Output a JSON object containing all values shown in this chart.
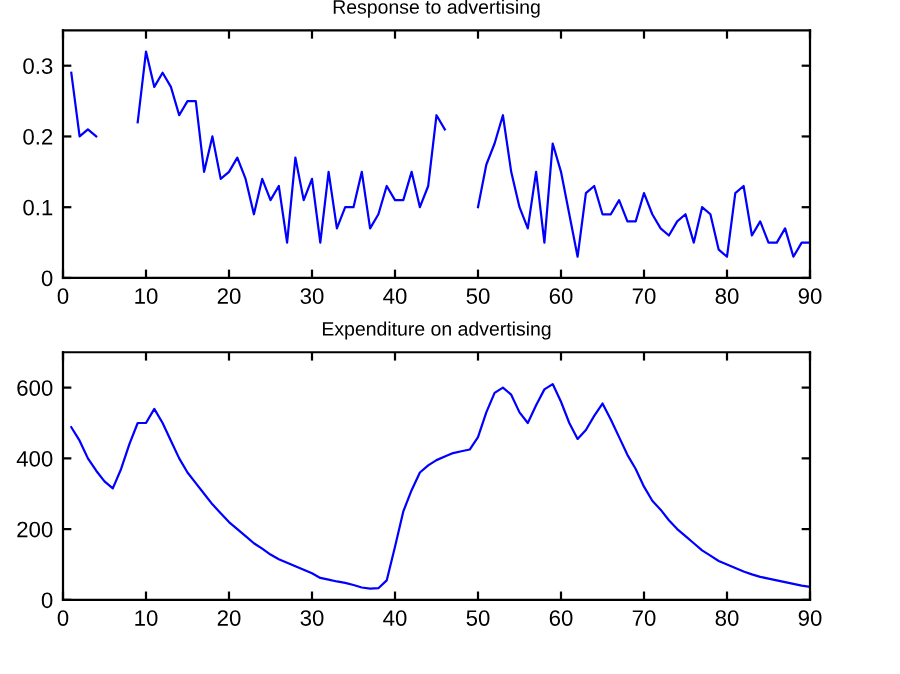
{
  "chart_data": [
    {
      "type": "line",
      "title": "Response to advertising",
      "x": [
        1,
        2,
        3,
        4,
        5,
        6,
        7,
        8,
        9,
        10,
        11,
        12,
        13,
        14,
        15,
        16,
        17,
        18,
        19,
        20,
        21,
        22,
        23,
        24,
        25,
        26,
        27,
        28,
        29,
        30,
        31,
        32,
        33,
        34,
        35,
        36,
        37,
        38,
        39,
        40,
        41,
        42,
        43,
        44,
        45,
        46,
        47,
        48,
        49,
        50,
        51,
        52,
        53,
        54,
        55,
        56,
        57,
        58,
        59,
        60,
        61,
        62,
        63,
        64,
        65,
        66,
        67,
        68,
        69,
        70,
        71,
        72,
        73,
        74,
        75,
        76,
        77,
        78,
        79,
        80,
        81,
        82,
        83,
        84,
        85,
        86,
        87,
        88,
        89,
        90
      ],
      "series": [
        {
          "color": "#0000ff",
          "values": [
            0.29,
            0.2,
            0.21,
            0.2,
            null,
            null,
            null,
            null,
            0.22,
            0.32,
            0.27,
            0.29,
            0.27,
            0.23,
            0.25,
            0.25,
            0.15,
            0.2,
            0.14,
            0.15,
            0.17,
            0.14,
            0.09,
            0.14,
            0.11,
            0.13,
            0.05,
            0.17,
            0.11,
            0.14,
            0.05,
            0.15,
            0.07,
            0.1,
            0.1,
            0.15,
            0.07,
            0.09,
            0.13,
            0.11,
            0.11,
            0.15,
            0.1,
            0.13,
            0.23,
            0.21,
            null,
            null,
            null,
            0.1,
            0.16,
            0.19,
            0.23,
            0.15,
            0.1,
            0.07,
            0.15,
            0.05,
            0.19,
            0.15,
            0.09,
            0.03,
            0.12,
            0.13,
            0.09,
            0.09,
            0.11,
            0.08,
            0.08,
            0.12,
            0.09,
            0.07,
            0.06,
            0.08,
            0.09,
            0.05,
            0.1,
            0.09,
            0.04,
            0.03,
            0.12,
            0.13,
            0.06,
            0.08,
            0.05,
            0.05,
            0.07,
            0.03,
            0.05,
            0.05
          ]
        }
      ],
      "xlim": [
        0,
        90
      ],
      "xticks": [
        0,
        10,
        20,
        30,
        40,
        50,
        60,
        70,
        80,
        90
      ],
      "ylim": [
        0,
        0.35
      ],
      "yticks": [
        0,
        0.1,
        0.2,
        0.3
      ],
      "grid": false,
      "legend": false
    },
    {
      "type": "line",
      "title": "Expenditure on advertising",
      "x": [
        1,
        2,
        3,
        4,
        5,
        6,
        7,
        8,
        9,
        10,
        11,
        12,
        13,
        14,
        15,
        16,
        17,
        18,
        19,
        20,
        21,
        22,
        23,
        24,
        25,
        26,
        27,
        28,
        29,
        30,
        31,
        32,
        33,
        34,
        35,
        36,
        37,
        38,
        39,
        40,
        41,
        42,
        43,
        44,
        45,
        46,
        47,
        48,
        49,
        50,
        51,
        52,
        53,
        54,
        55,
        56,
        57,
        58,
        59,
        60,
        61,
        62,
        63,
        64,
        65,
        66,
        67,
        68,
        69,
        70,
        71,
        72,
        73,
        74,
        75,
        76,
        77,
        78,
        79,
        80,
        81,
        82,
        83,
        84,
        85,
        86,
        87,
        88,
        89,
        90
      ],
      "series": [
        {
          "color": "#0000ff",
          "values": [
            488,
            450,
            400,
            365,
            335,
            315,
            370,
            440,
            500,
            500,
            540,
            500,
            450,
            400,
            360,
            330,
            300,
            270,
            245,
            220,
            200,
            180,
            160,
            145,
            128,
            115,
            105,
            95,
            85,
            75,
            62,
            57,
            52,
            48,
            42,
            35,
            32,
            33,
            55,
            150,
            250,
            310,
            360,
            380,
            395,
            405,
            415,
            420,
            425,
            460,
            530,
            585,
            600,
            580,
            530,
            500,
            550,
            595,
            610,
            560,
            500,
            455,
            480,
            520,
            555,
            510,
            460,
            410,
            370,
            320,
            280,
            255,
            225,
            200,
            180,
            160,
            140,
            125,
            110,
            100,
            90,
            80,
            72,
            65,
            60,
            55,
            50,
            45,
            40,
            37
          ]
        }
      ],
      "xlim": [
        0,
        90
      ],
      "xticks": [
        0,
        10,
        20,
        30,
        40,
        50,
        60,
        70,
        80,
        90
      ],
      "ylim": [
        0,
        700
      ],
      "yticks": [
        0,
        200,
        400,
        600
      ],
      "grid": false,
      "legend": false
    }
  ]
}
